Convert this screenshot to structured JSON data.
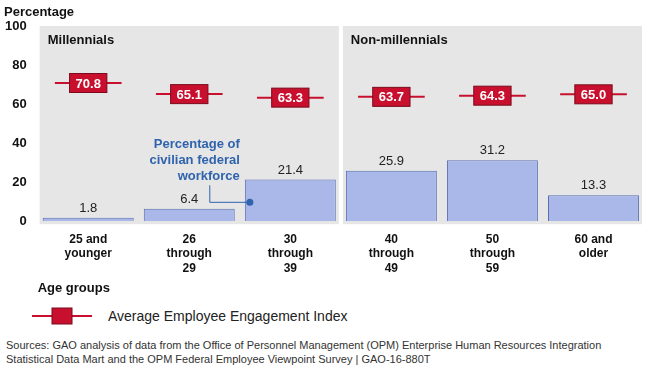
{
  "chart_data": {
    "type": "bar",
    "ylabel": "Percentage",
    "xlabel": "Age groups",
    "categories": [
      [
        "25 and",
        "younger"
      ],
      [
        "26",
        "through",
        "29"
      ],
      [
        "30",
        "through",
        "39"
      ],
      [
        "40",
        "through",
        "49"
      ],
      [
        "50",
        "through",
        "59"
      ],
      [
        "60 and",
        "older"
      ]
    ],
    "groups": [
      {
        "label": "Millennials",
        "categories": [
          [
            "25 and",
            "younger"
          ],
          [
            "26",
            "through",
            "29"
          ],
          [
            "30",
            "through",
            "39"
          ]
        ]
      },
      {
        "label": "Non-millennials",
        "categories": [
          [
            "40",
            "through",
            "49"
          ],
          [
            "50",
            "through",
            "59"
          ],
          [
            "60 and",
            "older"
          ]
        ]
      }
    ],
    "series": [
      {
        "name": "Percentage of civilian federal workforce",
        "type": "bar",
        "color": "#a9b8e8",
        "values": [
          1.8,
          6.4,
          21.4,
          25.9,
          31.2,
          13.3
        ]
      },
      {
        "name": "Average Employee Engagement Index",
        "type": "line",
        "color": "#c8102e",
        "marker": "box",
        "values": [
          70.8,
          65.1,
          63.3,
          63.7,
          64.3,
          65
        ],
        "value_labels": [
          "70.8",
          "65.1",
          "63.3",
          "63.7",
          "64.3",
          "65.0"
        ]
      }
    ],
    "ylim": [
      0,
      100
    ],
    "yticks": [
      0,
      20,
      40,
      60,
      80,
      100
    ],
    "grid": false,
    "legend": "bottom",
    "data_labels": true,
    "source": "Sources: GAO analysis of data from the Office of Personnel Management (OPM) Enterprise Human Resources Integration Statistical Data Mart and the OPM Federal Employee Viewpoint Survey  |  GAO-16-880T"
  }
}
